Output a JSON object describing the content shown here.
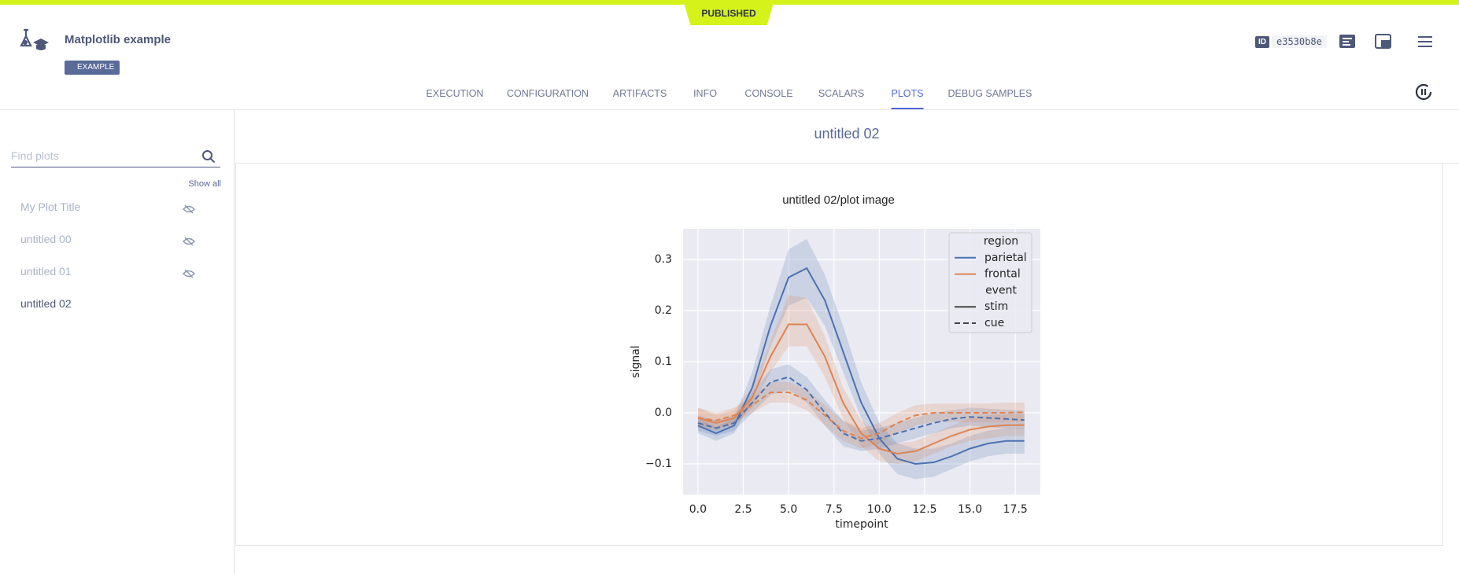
{
  "status": "PUBLISHED",
  "header": {
    "title": "Matplotlib example",
    "tag": "EXAMPLE",
    "id_label": "ID",
    "id": "e3530b8e"
  },
  "tabs": [
    "EXECUTION",
    "CONFIGURATION",
    "ARTIFACTS",
    "INFO",
    "CONSOLE",
    "SCALARS",
    "PLOTS",
    "DEBUG SAMPLES"
  ],
  "active_tab": 6,
  "sidebar": {
    "search_placeholder": "Find plots",
    "show_all": "Show all",
    "items": [
      {
        "label": "My Plot Title",
        "hidden": true
      },
      {
        "label": "untitled 00",
        "hidden": true
      },
      {
        "label": "untitled 01",
        "hidden": true
      },
      {
        "label": "untitled 02",
        "hidden": false
      }
    ]
  },
  "main": {
    "section_title": "untitled 02",
    "plot_title": "untitled 02/plot image"
  },
  "chart_data": {
    "type": "line",
    "x_label": "timepoint",
    "y_label": "signal",
    "x": [
      0,
      1,
      2,
      3,
      4,
      5,
      6,
      7,
      8,
      9,
      10,
      11,
      12,
      13,
      14,
      15,
      16,
      17,
      18
    ],
    "xlim": [
      -0.82,
      18.88
    ],
    "ylim": [
      -0.16,
      0.36
    ],
    "xticks": [
      {
        "value": 0,
        "label": "0.0"
      },
      2.5,
      {
        "value": 5,
        "label": "5.0"
      },
      7.5,
      {
        "value": 10,
        "label": "10.0"
      },
      12.5,
      {
        "value": 15,
        "label": "15.0"
      },
      17.5
    ],
    "yticks": [
      {
        "value": -0.1,
        "label": "−0.1"
      },
      {
        "value": 0,
        "label": "0.0"
      },
      0.1,
      0.2,
      0.3
    ],
    "grid": true,
    "legend_position": "upper right",
    "legend": {
      "hue_title": "region",
      "hue": [
        {
          "label": "parietal",
          "color": "#4c72b0"
        },
        {
          "label": "frontal",
          "color": "#dd8452"
        }
      ],
      "style_title": "event",
      "style": [
        {
          "label": "stim",
          "dash": "solid"
        },
        {
          "label": "cue",
          "dash": "dashed"
        }
      ]
    },
    "series": [
      {
        "region": "parietal",
        "event": "stim",
        "values": [
          -0.025,
          -0.04,
          -0.025,
          0.05,
          0.17,
          0.265,
          0.283,
          0.22,
          0.12,
          0.02,
          -0.05,
          -0.09,
          -0.1,
          -0.097,
          -0.085,
          -0.07,
          -0.06,
          -0.055,
          -0.055
        ],
        "lower": [
          -0.04,
          -0.055,
          -0.04,
          0.025,
          0.13,
          0.21,
          0.225,
          0.17,
          0.08,
          -0.01,
          -0.08,
          -0.12,
          -0.13,
          -0.125,
          -0.11,
          -0.095,
          -0.085,
          -0.08,
          -0.08
        ],
        "upper": [
          -0.01,
          -0.028,
          -0.01,
          0.08,
          0.21,
          0.32,
          0.34,
          0.27,
          0.17,
          0.06,
          -0.02,
          -0.06,
          -0.07,
          -0.07,
          -0.06,
          -0.045,
          -0.035,
          -0.03,
          -0.03
        ]
      },
      {
        "region": "frontal",
        "event": "stim",
        "values": [
          -0.01,
          -0.02,
          -0.01,
          0.03,
          0.11,
          0.173,
          0.173,
          0.11,
          0.02,
          -0.04,
          -0.07,
          -0.08,
          -0.075,
          -0.06,
          -0.045,
          -0.033,
          -0.027,
          -0.024,
          -0.024
        ],
        "lower": [
          -0.03,
          -0.035,
          -0.025,
          0.01,
          0.08,
          0.13,
          0.13,
          0.07,
          -0.01,
          -0.065,
          -0.095,
          -0.1,
          -0.095,
          -0.08,
          -0.065,
          -0.055,
          -0.05,
          -0.045,
          -0.045
        ],
        "upper": [
          0.01,
          -0.005,
          0.005,
          0.05,
          0.14,
          0.23,
          0.225,
          0.15,
          0.05,
          -0.015,
          -0.045,
          -0.06,
          -0.055,
          -0.04,
          -0.025,
          -0.01,
          -0.005,
          -0.003,
          -0.003
        ]
      },
      {
        "region": "parietal",
        "event": "cue",
        "values": [
          -0.02,
          -0.03,
          -0.02,
          0.02,
          0.06,
          0.07,
          0.045,
          0.0,
          -0.04,
          -0.055,
          -0.05,
          -0.04,
          -0.03,
          -0.02,
          -0.012,
          -0.008,
          -0.01,
          -0.012,
          -0.014
        ],
        "lower": [
          -0.035,
          -0.045,
          -0.035,
          0.0,
          0.035,
          0.045,
          0.02,
          -0.025,
          -0.065,
          -0.075,
          -0.07,
          -0.06,
          -0.05,
          -0.04,
          -0.03,
          -0.025,
          -0.028,
          -0.03,
          -0.032
        ],
        "upper": [
          -0.005,
          -0.015,
          -0.005,
          0.04,
          0.085,
          0.095,
          0.07,
          0.025,
          -0.015,
          -0.035,
          -0.03,
          -0.02,
          -0.01,
          0.0,
          0.005,
          0.01,
          0.008,
          0.006,
          0.004
        ]
      },
      {
        "region": "frontal",
        "event": "cue",
        "values": [
          -0.01,
          -0.015,
          -0.005,
          0.015,
          0.04,
          0.04,
          0.025,
          -0.005,
          -0.035,
          -0.05,
          -0.04,
          -0.02,
          -0.005,
          0.0,
          0.0,
          0.0,
          0.0,
          0.0,
          0.001
        ],
        "lower": [
          -0.025,
          -0.03,
          -0.02,
          0.0,
          0.02,
          0.02,
          0.005,
          -0.025,
          -0.055,
          -0.07,
          -0.06,
          -0.04,
          -0.025,
          -0.018,
          -0.018,
          -0.018,
          -0.018,
          -0.018,
          -0.018
        ],
        "upper": [
          0.01,
          0.0,
          0.01,
          0.03,
          0.06,
          0.06,
          0.045,
          0.015,
          -0.015,
          -0.03,
          -0.02,
          0.0,
          0.015,
          0.018,
          0.018,
          0.018,
          0.018,
          0.02,
          0.02
        ]
      }
    ]
  }
}
